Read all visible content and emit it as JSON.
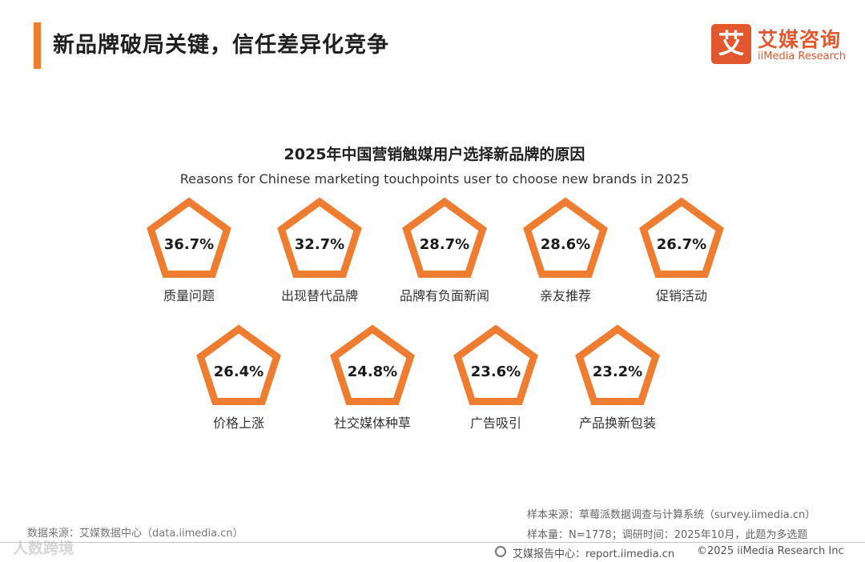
{
  "header": {
    "title": "新品牌破局关键，信任差异化竞争",
    "accent_color": "#ee7d31"
  },
  "brand": {
    "glyph": "艾",
    "name_cn": "艾媒咨询",
    "name_en": "iiMedia Research",
    "color": "#e2582e"
  },
  "chart_data": {
    "type": "pictorial",
    "title": "2025年中国营销触媒用户选择新品牌的原因",
    "subtitle": "Reasons for Chinese marketing touchpoints user to choose new brands in 2025",
    "unit": "%",
    "marker_shape": "pentagon",
    "marker_color": "#ee7d31",
    "categories": [
      "质量问题",
      "出现替代品牌",
      "品牌有负面新闻",
      "亲友推荐",
      "促销活动",
      "价格上涨",
      "社交媒体种草",
      "广告吸引",
      "产品换新包装"
    ],
    "values": [
      36.7,
      32.7,
      28.7,
      28.6,
      26.7,
      26.4,
      24.8,
      23.6,
      23.2
    ],
    "value_labels": [
      "36.7%",
      "32.7%",
      "28.7%",
      "28.6%",
      "26.7%",
      "26.4%",
      "24.8%",
      "23.6%",
      "23.2%"
    ]
  },
  "footer": {
    "data_source": "数据来源：艾媒数据中心（data.iimedia.cn）",
    "sample_source": "样本来源：草莓派数据调查与计算系统（survey.iimedia.cn）",
    "sample_info": "样本量：N=1778；调研时间：2025年10月，此题为多选题",
    "report_center": "艾媒报告中心：report.iimedia.cn",
    "copyright": "©2025  iiMedia Research  Inc",
    "watermark": "人数跨境"
  }
}
